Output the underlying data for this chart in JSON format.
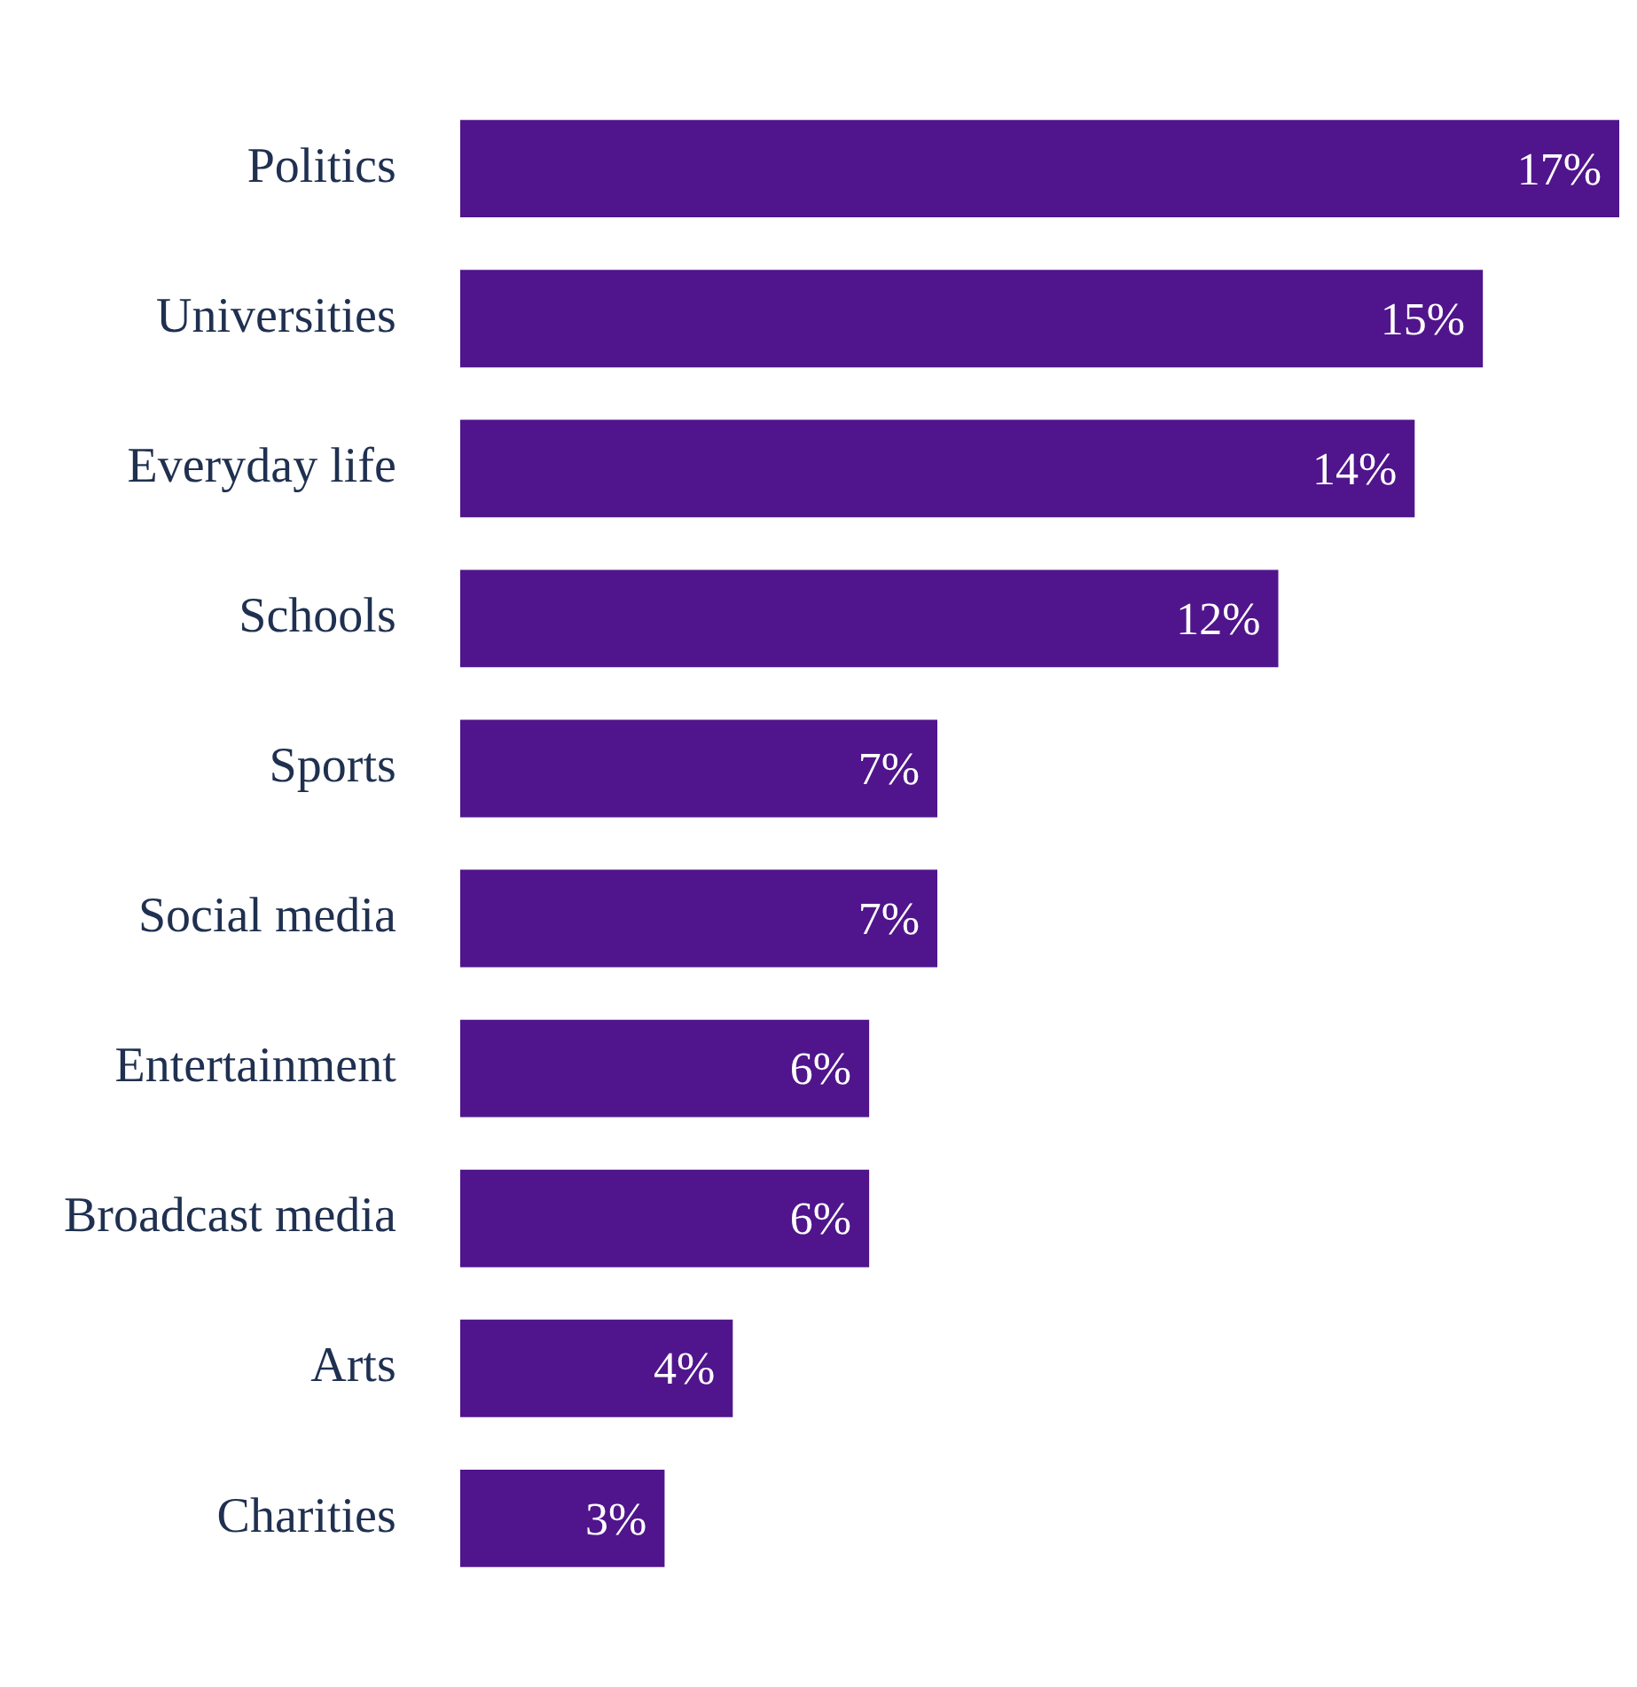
{
  "chart_data": {
    "type": "bar",
    "orientation": "horizontal",
    "categories": [
      "Politics",
      "Universities",
      "Everyday life",
      "Schools",
      "Sports",
      "Social media",
      "Entertainment",
      "Broadcast media",
      "Arts",
      "Charities"
    ],
    "values": [
      17,
      15,
      14,
      12,
      7,
      7,
      6,
      6,
      4,
      3
    ],
    "value_labels": [
      "17%",
      "15%",
      "14%",
      "12%",
      "7%",
      "7%",
      "6%",
      "6%",
      "4%",
      "3%"
    ],
    "color": "#50158c"
  }
}
